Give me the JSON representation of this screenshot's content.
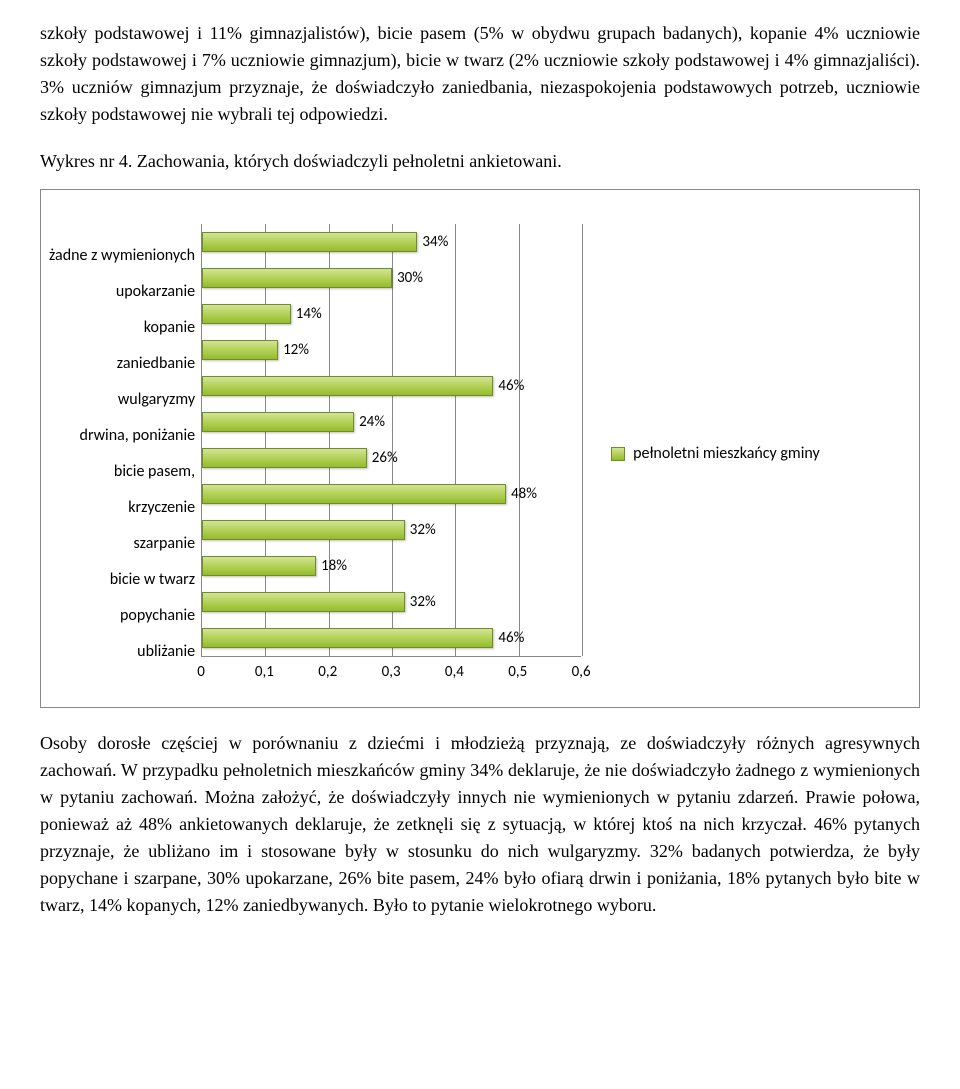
{
  "paragraphs": {
    "p1": "szkoły podstawowej i 11% gimnazjalistów), bicie pasem (5% w obydwu grupach badanych), kopanie 4% uczniowie szkoły podstawowej i 7% uczniowie gimnazjum), bicie w twarz (2% uczniowie szkoły podstawowej i 4% gimnazjaliści). 3% uczniów gimnazjum przyznaje, że doświadczyło zaniedbania, niezaspokojenia podstawowych potrzeb, uczniowie szkoły podstawowej nie wybrali tej odpowiedzi.",
    "chart_title": "Wykres nr 4. Zachowania, których doświadczyli pełnoletni ankietowani.",
    "p2": "Osoby dorosłe częściej w porównaniu z dziećmi i młodzieżą przyznają, ze doświadczyły różnych agresywnych zachowań. W przypadku pełnoletnich mieszkańców gminy 34% deklaruje, że nie doświadczyło żadnego z wymienionych w pytaniu zachowań. Można założyć, że doświadczyły innych nie wymienionych w pytaniu zdarzeń. Prawie połowa, ponieważ aż 48% ankietowanych deklaruje, że zetknęli się z sytuacją, w której  ktoś na nich krzyczał. 46% pytanych przyznaje, że ubliżano im i stosowane były w stosunku do nich wulgaryzmy. 32% badanych potwierdza, że były popychane i szarpane, 30% upokarzane, 26% bite pasem, 24% było ofiarą drwin i poniżania, 18% pytanych było bite w twarz, 14% kopanych, 12% zaniedbywanych. Było to pytanie wielokrotnego wyboru."
  },
  "chart": {
    "type": "bar-horizontal",
    "xlim": [
      0,
      0.6
    ],
    "xtick_step": 0.1,
    "xticks": [
      "0",
      "0,1",
      "0,2",
      "0,3",
      "0,4",
      "0,5",
      "0,6"
    ],
    "bar_color_top": "#d3e29a",
    "bar_color_mid": "#b7d35c",
    "bar_color_bot": "#94bb2f",
    "bar_border": "#6f8f22",
    "grid_color": "#888888",
    "background_color": "#ffffff",
    "label_fontsize": 16,
    "tick_fontsize": 15,
    "legend": {
      "label": "pełnoletni mieszkańcy gminy"
    },
    "categories": [
      {
        "label": "żadne z wymienionych",
        "value": 0.34,
        "display": "34%"
      },
      {
        "label": "upokarzanie",
        "value": 0.3,
        "display": "30%"
      },
      {
        "label": "kopanie",
        "value": 0.14,
        "display": "14%"
      },
      {
        "label": "zaniedbanie",
        "value": 0.12,
        "display": "12%"
      },
      {
        "label": "wulgaryzmy",
        "value": 0.46,
        "display": "46%"
      },
      {
        "label": "drwina, poniżanie",
        "value": 0.24,
        "display": "24%"
      },
      {
        "label": "bicie pasem,",
        "value": 0.26,
        "display": "26%"
      },
      {
        "label": "krzyczenie",
        "value": 0.48,
        "display": "48%"
      },
      {
        "label": "szarpanie",
        "value": 0.32,
        "display": "32%"
      },
      {
        "label": "bicie w twarz",
        "value": 0.18,
        "display": "18%"
      },
      {
        "label": "popychanie",
        "value": 0.32,
        "display": "32%"
      },
      {
        "label": "ubliżanie",
        "value": 0.46,
        "display": "46%"
      }
    ]
  }
}
